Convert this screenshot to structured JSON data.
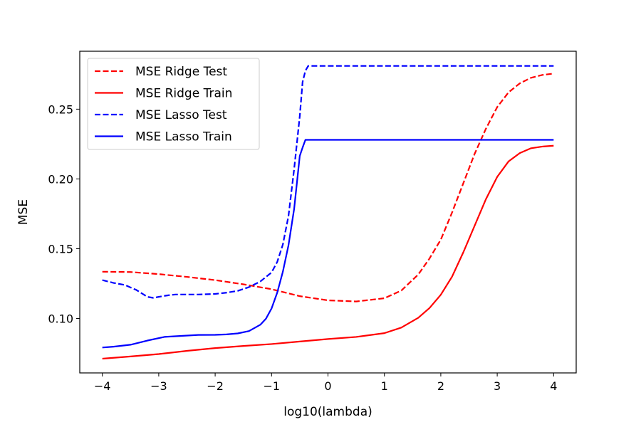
{
  "chart_data": {
    "type": "line",
    "title": "",
    "xlabel": "log10(lambda)",
    "ylabel": "MSE",
    "xlim": [
      -4.4,
      4.4
    ],
    "ylim": [
      0.061,
      0.2915
    ],
    "xticks": [
      -4,
      -3,
      -2,
      -1,
      0,
      1,
      2,
      3,
      4
    ],
    "xtick_labels": [
      "−4",
      "−3",
      "−2",
      "−1",
      "0",
      "1",
      "2",
      "3",
      "4"
    ],
    "yticks": [
      0.1,
      0.15,
      0.2,
      0.25
    ],
    "ytick_labels": [
      "0.10",
      "0.15",
      "0.20",
      "0.25"
    ],
    "grid": false,
    "legend_position": "top-left",
    "series": [
      {
        "name": "MSE Ridge Test",
        "color": "#ff0000",
        "dash": "dashed",
        "x": [
          -4,
          -3.5,
          -3,
          -2.5,
          -2,
          -1.5,
          -1,
          -0.5,
          0,
          0.5,
          1,
          1.3,
          1.6,
          1.8,
          2,
          2.2,
          2.4,
          2.6,
          2.8,
          3,
          3.2,
          3.4,
          3.6,
          3.8,
          4
        ],
        "y": [
          0.1335,
          0.1333,
          0.1318,
          0.1298,
          0.1275,
          0.1245,
          0.121,
          0.116,
          0.113,
          0.1122,
          0.1145,
          0.12,
          0.1315,
          0.143,
          0.1565,
          0.176,
          0.197,
          0.218,
          0.236,
          0.2515,
          0.262,
          0.2685,
          0.2725,
          0.2745,
          0.2755
        ]
      },
      {
        "name": "MSE Ridge Train",
        "color": "#ff0000",
        "dash": "solid",
        "x": [
          -4,
          -3.5,
          -3,
          -2.5,
          -2,
          -1.5,
          -1,
          -0.5,
          0,
          0.5,
          1,
          1.3,
          1.6,
          1.8,
          2,
          2.2,
          2.4,
          2.6,
          2.8,
          3,
          3.2,
          3.4,
          3.6,
          3.8,
          4
        ],
        "y": [
          0.0712,
          0.0728,
          0.0745,
          0.0768,
          0.0788,
          0.0803,
          0.0817,
          0.0835,
          0.0853,
          0.0868,
          0.0895,
          0.0935,
          0.1005,
          0.1075,
          0.117,
          0.13,
          0.1475,
          0.1665,
          0.1855,
          0.2015,
          0.2125,
          0.2185,
          0.222,
          0.2232,
          0.2238
        ]
      },
      {
        "name": "MSE Lasso Test",
        "color": "#0000ff",
        "dash": "dashed",
        "x": [
          -4,
          -3.8,
          -3.6,
          -3.4,
          -3.2,
          -3.1,
          -3.0,
          -2.9,
          -2.8,
          -2.7,
          -2.5,
          -2.3,
          -2.0,
          -1.8,
          -1.6,
          -1.4,
          -1.2,
          -1.0,
          -0.9,
          -0.8,
          -0.7,
          -0.6,
          -0.5,
          -0.45,
          -0.4,
          -0.35,
          4
        ],
        "y": [
          0.1275,
          0.1255,
          0.124,
          0.1205,
          0.1155,
          0.1148,
          0.1155,
          0.1162,
          0.1168,
          0.1172,
          0.1172,
          0.1172,
          0.1176,
          0.1185,
          0.1198,
          0.1225,
          0.1265,
          0.133,
          0.1405,
          0.153,
          0.1735,
          0.207,
          0.245,
          0.2695,
          0.2775,
          0.281,
          0.281
        ]
      },
      {
        "name": "MSE Lasso Train",
        "color": "#0000ff",
        "dash": "solid",
        "x": [
          -4,
          -3.8,
          -3.5,
          -3.2,
          -2.9,
          -2.6,
          -2.3,
          -2.0,
          -1.8,
          -1.6,
          -1.4,
          -1.2,
          -1.1,
          -1.0,
          -0.9,
          -0.8,
          -0.7,
          -0.6,
          -0.5,
          -0.45,
          -0.4,
          -0.35,
          4
        ],
        "y": [
          0.0792,
          0.0798,
          0.0812,
          0.0842,
          0.0868,
          0.0875,
          0.0882,
          0.0883,
          0.0886,
          0.0893,
          0.091,
          0.0955,
          0.0998,
          0.1072,
          0.1185,
          0.1335,
          0.1525,
          0.1785,
          0.2165,
          0.2225,
          0.228,
          0.228,
          0.228
        ]
      }
    ]
  }
}
